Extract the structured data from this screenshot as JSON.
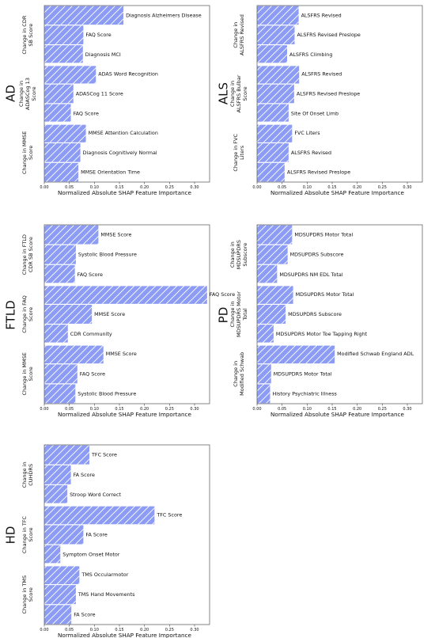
{
  "colors": {
    "bar": "#8c9cf4",
    "hatch": "#ffffff",
    "frame": "#666666",
    "divider": "#ffffff"
  },
  "chart_data": [
    {
      "type": "bar",
      "orientation": "horizontal",
      "title": "AD",
      "xlabel": "Normalized Absolute SHAP Feature Importance",
      "xlim": [
        0,
        0.33
      ],
      "xticks": [
        "0.00",
        "0.05",
        "0.10",
        "0.15",
        "0.20",
        "0.25",
        "0.30"
      ],
      "groups": [
        {
          "label": "Change in CDR SB Score",
          "features": [
            {
              "name": "Diagnosis Alzheimers Disease",
              "value": 0.158
            },
            {
              "name": "FAQ Score",
              "value": 0.078
            },
            {
              "name": "Diagnosis MCI",
              "value": 0.077
            }
          ]
        },
        {
          "label": "Change in ADASCog 13 Score",
          "features": [
            {
              "name": "ADAS Word Recognition",
              "value": 0.103
            },
            {
              "name": "ADASCog 11 Score",
              "value": 0.058
            },
            {
              "name": "FAQ Score",
              "value": 0.053
            }
          ]
        },
        {
          "label": "Change in MMSE Score",
          "features": [
            {
              "name": "MMSE Attention Calculation",
              "value": 0.083
            },
            {
              "name": "Diagnosis Cognitively Normal",
              "value": 0.072
            },
            {
              "name": "MMSE Orientation Time",
              "value": 0.068
            }
          ]
        }
      ]
    },
    {
      "type": "bar",
      "orientation": "horizontal",
      "title": "ALS",
      "xlabel": "Normalized Absolute SHAP Feature Importance",
      "xlim": [
        0,
        0.33
      ],
      "xticks": [
        "0.00",
        "0.05",
        "0.10",
        "0.15",
        "0.20",
        "0.25",
        "0.30"
      ],
      "groups": [
        {
          "label": "Change in ALSFRS Revised",
          "features": [
            {
              "name": "ALSFRS Revised",
              "value": 0.083
            },
            {
              "name": "ALSFRS Revised Preslope",
              "value": 0.075
            },
            {
              "name": "ALSFRS Climbing",
              "value": 0.06
            }
          ]
        },
        {
          "label": "Change in ALSFRS Bulbar Score",
          "features": [
            {
              "name": "ALSFRS Revised",
              "value": 0.084
            },
            {
              "name": "ALSFRS Revised Preslope",
              "value": 0.074
            },
            {
              "name": "Site Of Onset Limb",
              "value": 0.063
            }
          ]
        },
        {
          "label": "Change in FVC Liters",
          "features": [
            {
              "name": "FVC Liters",
              "value": 0.07
            },
            {
              "name": "ALSFRS Revised",
              "value": 0.063
            },
            {
              "name": "ALSFRS Revised Preslope",
              "value": 0.055
            }
          ]
        }
      ]
    },
    {
      "type": "bar",
      "orientation": "horizontal",
      "title": "FTLD",
      "xlabel": "Normalized Absolute SHAP Feature Importance",
      "xlim": [
        0,
        0.33
      ],
      "xticks": [
        "0.00",
        "0.05",
        "0.10",
        "0.15",
        "0.20",
        "0.25",
        "0.30"
      ],
      "groups": [
        {
          "label": "Change in FTLD CDR SB Score",
          "features": [
            {
              "name": "MMSE Score",
              "value": 0.108
            },
            {
              "name": "Systolic Blood Pressure",
              "value": 0.063
            },
            {
              "name": "FAQ Score",
              "value": 0.061
            }
          ]
        },
        {
          "label": "Change in FAQ Score",
          "features": [
            {
              "name": "FAQ Score",
              "value": 0.325
            },
            {
              "name": "MMSE Score",
              "value": 0.095
            },
            {
              "name": "CDR Community",
              "value": 0.047
            }
          ]
        },
        {
          "label": "Change in MMSE Score",
          "features": [
            {
              "name": "MMSE Score",
              "value": 0.118
            },
            {
              "name": "FAQ Score",
              "value": 0.066
            },
            {
              "name": "Systolic Blood Pressure",
              "value": 0.062
            }
          ]
        }
      ]
    },
    {
      "type": "bar",
      "orientation": "horizontal",
      "title": "PD",
      "xlabel": "Normalized Absolute SHAP Feature Importance",
      "xlim": [
        0,
        0.33
      ],
      "xticks": [
        "0.00",
        "0.05",
        "0.10",
        "0.15",
        "0.20",
        "0.25",
        "0.30"
      ],
      "groups": [
        {
          "label": "Change in MDSUPDRS Subscore",
          "features": [
            {
              "name": "MDSUPDRS Motor Total",
              "value": 0.07
            },
            {
              "name": "MDSUPDRS Subscore",
              "value": 0.061
            },
            {
              "name": "MDSUPDRS NM EDL Total",
              "value": 0.04
            }
          ]
        },
        {
          "label": "Change in MDSUPDRS Motor Total",
          "features": [
            {
              "name": "MDSUPDRS Motor Total",
              "value": 0.072
            },
            {
              "name": "MDSUPDRS Subscore",
              "value": 0.057
            },
            {
              "name": "MDSUPDRS Motor Toe Tapping Right",
              "value": 0.033
            }
          ]
        },
        {
          "label": "Change in Modified Schwab",
          "features": [
            {
              "name": "Modified Schwab England ADL",
              "value": 0.155
            },
            {
              "name": "MDSUPDRS Motor Total",
              "value": 0.028
            },
            {
              "name": "History Psychiatric Illness",
              "value": 0.026
            }
          ]
        }
      ]
    },
    {
      "type": "bar",
      "orientation": "horizontal",
      "title": "HD",
      "xlabel": "Normalized Absolute SHAP Feature Importance",
      "xlim": [
        0,
        0.33
      ],
      "xticks": [
        "0.00",
        "0.05",
        "0.10",
        "0.15",
        "0.20",
        "0.25",
        "0.30"
      ],
      "groups": [
        {
          "label": "Change in CUHDRS",
          "features": [
            {
              "name": "TFC Score",
              "value": 0.09
            },
            {
              "name": "FA Score",
              "value": 0.053
            },
            {
              "name": "Stroop Word Correct",
              "value": 0.046
            }
          ]
        },
        {
          "label": "Change in TFC Score",
          "features": [
            {
              "name": "TFC Score",
              "value": 0.22
            },
            {
              "name": "FA Score",
              "value": 0.078
            },
            {
              "name": "Symptom Onset Motor",
              "value": 0.032
            }
          ]
        },
        {
          "label": "Change in TMS Score",
          "features": [
            {
              "name": "TMS Occularmotor",
              "value": 0.07
            },
            {
              "name": "TMS Hand Movements",
              "value": 0.063
            },
            {
              "name": "FA Score",
              "value": 0.054
            }
          ]
        }
      ]
    }
  ]
}
